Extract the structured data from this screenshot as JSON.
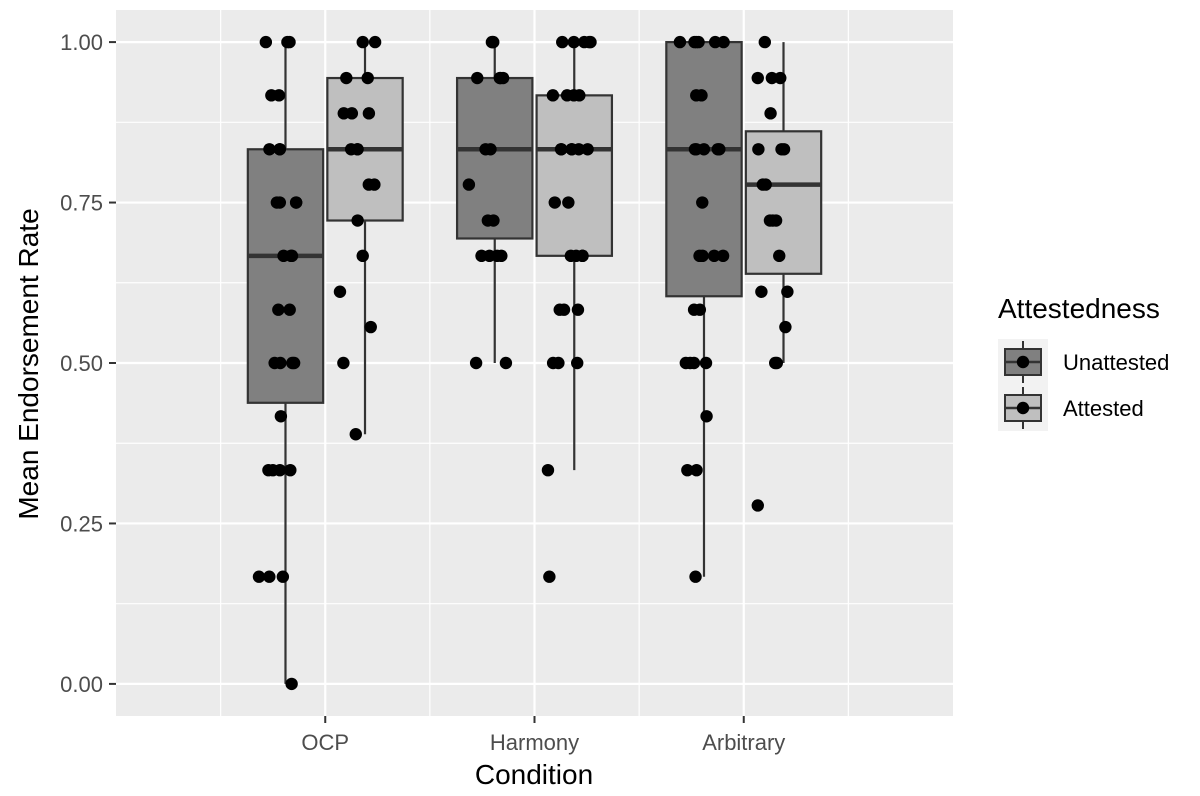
{
  "chart_data": {
    "type": "box",
    "title": "",
    "xlabel": "Condition",
    "ylabel": "Mean Endorsement Rate",
    "ylim": [
      -0.05,
      1.05
    ],
    "yticks": [
      0.0,
      0.25,
      0.5,
      0.75,
      1.0
    ],
    "ytick_labels": [
      "0.00",
      "0.25",
      "0.50",
      "0.75",
      "1.00"
    ],
    "categories": [
      "OCP",
      "Harmony",
      "Arbitrary"
    ],
    "grid": true,
    "legend": {
      "title": "Attestedness",
      "position": "right"
    },
    "series": [
      {
        "name": "Unattested",
        "color": "#808080",
        "boxes": [
          {
            "category": "OCP",
            "whisker_low": 0.0,
            "q1": 0.438,
            "median": 0.667,
            "q3": 0.833,
            "whisker_high": 1.0,
            "points": [
              1.0,
              1.0,
              1.0,
              0.917,
              0.917,
              0.833,
              0.833,
              0.833,
              0.75,
              0.75,
              0.75,
              0.75,
              0.667,
              0.667,
              0.667,
              0.583,
              0.583,
              0.5,
              0.5,
              0.5,
              0.5,
              0.417,
              0.333,
              0.333,
              0.333,
              0.333,
              0.167,
              0.167,
              0.167,
              0.0
            ]
          },
          {
            "category": "Harmony",
            "whisker_low": 0.5,
            "q1": 0.694,
            "median": 0.833,
            "q3": 0.944,
            "whisker_high": 1.0,
            "points": [
              1.0,
              1.0,
              1.0,
              0.944,
              0.944,
              0.944,
              0.944,
              0.833,
              0.833,
              0.778,
              0.722,
              0.722,
              0.667,
              0.667,
              0.667,
              0.667,
              0.5,
              0.5
            ]
          },
          {
            "category": "Arbitrary",
            "whisker_low": 0.167,
            "q1": 0.604,
            "median": 0.833,
            "q3": 1.0,
            "whisker_high": 1.0,
            "points": [
              1.0,
              1.0,
              1.0,
              1.0,
              1.0,
              1.0,
              0.917,
              0.917,
              0.833,
              0.833,
              0.833,
              0.833,
              0.833,
              0.75,
              0.667,
              0.667,
              0.667,
              0.667,
              0.583,
              0.583,
              0.5,
              0.5,
              0.5,
              0.5,
              0.417,
              0.333,
              0.333,
              0.167
            ]
          }
        ]
      },
      {
        "name": "Attested",
        "color": "#bfbfbf",
        "boxes": [
          {
            "category": "OCP",
            "whisker_low": 0.389,
            "q1": 0.722,
            "median": 0.833,
            "q3": 0.944,
            "whisker_high": 1.0,
            "points": [
              1.0,
              1.0,
              0.944,
              0.944,
              0.889,
              0.889,
              0.889,
              0.833,
              0.833,
              0.833,
              0.778,
              0.778,
              0.722,
              0.667,
              0.611,
              0.556,
              0.5,
              0.389
            ]
          },
          {
            "category": "Harmony",
            "whisker_low": 0.333,
            "q1": 0.667,
            "median": 0.833,
            "q3": 0.917,
            "whisker_high": 1.0,
            "points": [
              1.0,
              1.0,
              1.0,
              1.0,
              1.0,
              0.917,
              0.917,
              0.917,
              0.917,
              0.833,
              0.833,
              0.833,
              0.833,
              0.833,
              0.833,
              0.75,
              0.75,
              0.667,
              0.667,
              0.667,
              0.667,
              0.583,
              0.583,
              0.583,
              0.5,
              0.5,
              0.5,
              0.333,
              0.167
            ]
          },
          {
            "category": "Arbitrary",
            "whisker_low": 0.5,
            "q1": 0.639,
            "median": 0.778,
            "q3": 0.861,
            "whisker_high": 1.0,
            "points": [
              1.0,
              0.944,
              0.944,
              0.944,
              0.889,
              0.833,
              0.833,
              0.833,
              0.778,
              0.778,
              0.722,
              0.722,
              0.722,
              0.667,
              0.611,
              0.611,
              0.556,
              0.5,
              0.5,
              0.278
            ]
          }
        ]
      }
    ]
  }
}
